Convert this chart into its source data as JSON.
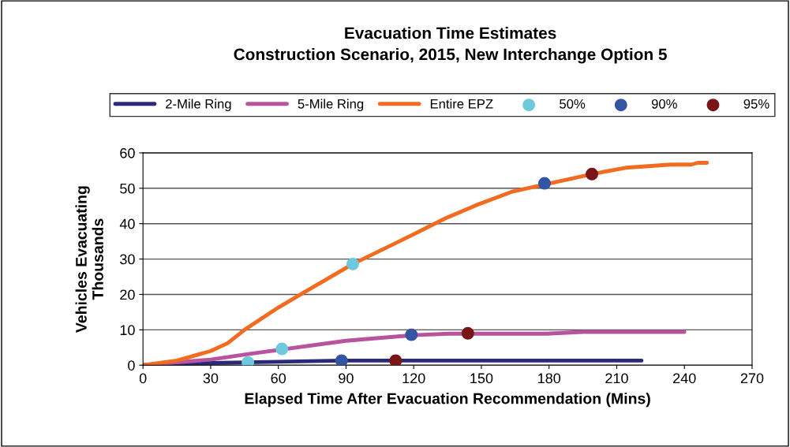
{
  "chart_data": {
    "type": "line",
    "title": "Evacuation Time Estimates\nConstruction Scenario, 2015, New Interchange Option 5",
    "xlabel": "Elapsed Time After Evacuation Recommendation (Mins)",
    "ylabel": "Vehicles Evacuating\nThousands",
    "xlim": [
      0,
      270
    ],
    "xticks": [
      0,
      30,
      60,
      90,
      120,
      150,
      180,
      210,
      240,
      270
    ],
    "ylim": [
      0,
      60
    ],
    "yticks": [
      0,
      10,
      20,
      30,
      40,
      50,
      60
    ],
    "grid": "y",
    "legend": "top",
    "marker": "none",
    "line_style": "solid",
    "series": [
      {
        "name": "2-Mile Ring",
        "color": "#2a2a78",
        "x": [
          0,
          30,
          46,
          88,
          112,
          221
        ],
        "values": [
          0,
          0.6,
          0.8,
          1.3,
          1.3,
          1.3
        ]
      },
      {
        "name": "5-Mile Ring",
        "color": "#b9529f",
        "x": [
          0,
          30,
          46,
          90,
          120,
          136,
          179,
          195,
          240
        ],
        "values": [
          0,
          1.6,
          3.1,
          6.9,
          8.5,
          8.9,
          8.9,
          9.4,
          9.4
        ]
      },
      {
        "name": "Entire EPZ",
        "color": "#f26b21",
        "x": [
          0,
          15,
          30,
          37.5,
          45,
          60,
          72,
          93,
          120,
          134,
          148,
          164,
          199,
          214,
          234,
          243,
          246,
          250
        ],
        "values": [
          0,
          1.3,
          4.0,
          6.2,
          10,
          16.3,
          20.8,
          28.6,
          37,
          41.5,
          45.3,
          49.1,
          54,
          55.8,
          56.7,
          56.7,
          57.2,
          57.2
        ]
      },
      {
        "name": "50%",
        "type": "scatter",
        "marker": "circle",
        "color": "#6ccadc",
        "x": [
          46.5,
          61.6,
          93
        ],
        "values": [
          0.8,
          4.6,
          28.6
        ]
      },
      {
        "name": "90%",
        "type": "scatter",
        "marker": "circle",
        "color": "#3454a4",
        "x": [
          88,
          119,
          178
        ],
        "values": [
          1.3,
          8.6,
          51.4
        ]
      },
      {
        "name": "95%",
        "type": "scatter",
        "marker": "circle",
        "color": "#7a1416",
        "x": [
          112,
          144,
          199
        ],
        "values": [
          1.3,
          9.0,
          54
        ]
      }
    ]
  }
}
